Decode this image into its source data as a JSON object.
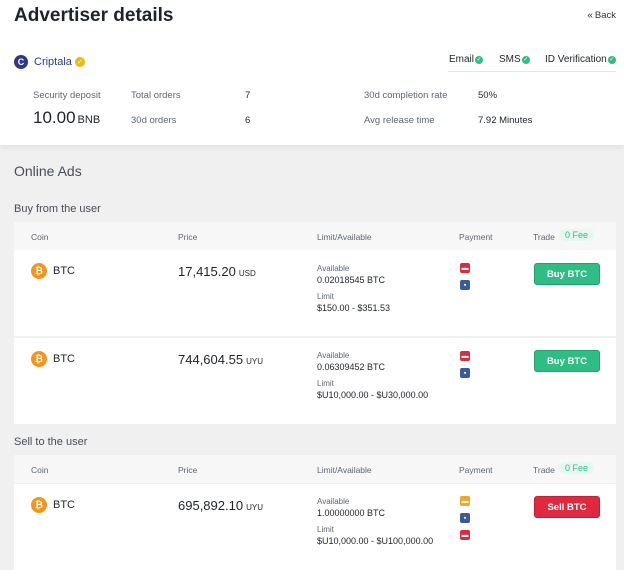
{
  "header": {
    "title": "Advertiser details",
    "back_label": "Back"
  },
  "advertiser": {
    "avatar_letter": "C",
    "name": "Criptala",
    "verifications": [
      {
        "label": "Email"
      },
      {
        "label": "SMS"
      },
      {
        "label": "ID Verification"
      }
    ],
    "stats": {
      "security_deposit_label": "Security deposit",
      "security_deposit_value": "10.00",
      "security_deposit_unit": "BNB",
      "total_orders_label": "Total orders",
      "total_orders_value": "7",
      "orders_30d_label": "30d orders",
      "orders_30d_value": "6",
      "completion_rate_label": "30d completion rate",
      "completion_rate_value": "50%",
      "avg_release_label": "Avg release time",
      "avg_release_value": "7.92 Minutes"
    }
  },
  "online_ads": {
    "title": "Online Ads",
    "columns": {
      "coin": "Coin",
      "price": "Price",
      "limit": "Limit/Available",
      "payment": "Payment",
      "trade": "Trade",
      "fee": "0 Fee"
    },
    "buy_section": {
      "title": "Buy from the user",
      "ads": [
        {
          "coin": "BTC",
          "price": "17,415.20",
          "currency": "USD",
          "available_label": "Available",
          "available": "0.02018545 BTC",
          "limit_label": "Limit",
          "limit": "$150.00 - $351.53",
          "action": "Buy BTC"
        },
        {
          "coin": "BTC",
          "price": "744,604.55",
          "currency": "UYU",
          "available_label": "Available",
          "available": "0.06309452 BTC",
          "limit_label": "Limit",
          "limit": "$U10,000.00 - $U30,000.00",
          "action": "Buy BTC"
        }
      ]
    },
    "sell_section": {
      "title": "Sell to the user",
      "ads": [
        {
          "coin": "BTC",
          "price": "695,892.10",
          "currency": "UYU",
          "available_label": "Available",
          "available": "1.00000000 BTC",
          "limit_label": "Limit",
          "limit": "$U10,000.00 - $U100,000.00",
          "action": "Sell BTC"
        }
      ]
    }
  },
  "colors": {
    "buy": "#2ebd85",
    "sell": "#e0293e",
    "accent": "#f0b90b",
    "brand": "#2d3a8c"
  },
  "icons": {
    "coin": "bitcoin-icon",
    "verified": "check-circle-icon",
    "back": "double-chevron-left-icon"
  }
}
